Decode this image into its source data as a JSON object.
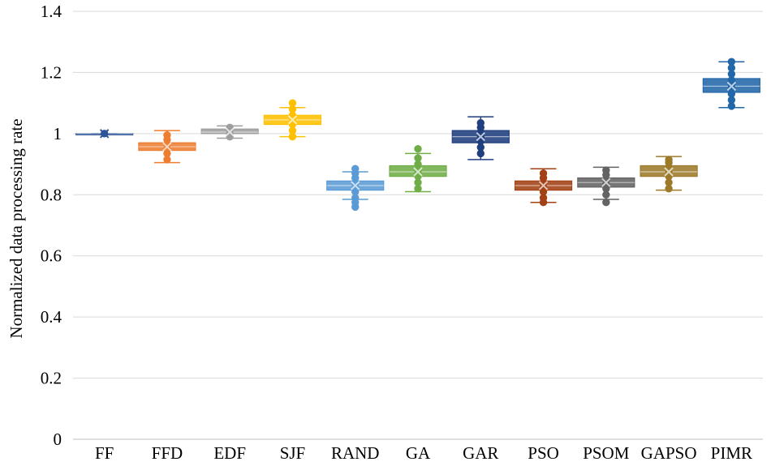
{
  "chart_data": {
    "type": "box",
    "title": "",
    "xlabel": "",
    "ylabel": "Normalized data processing rate",
    "ylim": [
      0,
      1.4
    ],
    "yticks": [
      "0",
      "0.2",
      "0.4",
      "0.6",
      "0.8",
      "1",
      "1.2",
      "1.4"
    ],
    "grid": true,
    "legend": "none",
    "categories": [
      "FF",
      "FFD",
      "EDF",
      "SJF",
      "RAND",
      "GA",
      "GAR",
      "PSO",
      "PSOM",
      "GAPSO",
      "PIMR"
    ],
    "boxes": [
      {
        "category": "FF",
        "color": "#2E5597",
        "min": 1.0,
        "q1": 1.0,
        "median": 1.0,
        "q3": 1.0,
        "max": 1.0,
        "mean": 1.0,
        "points": [
          1.0
        ]
      },
      {
        "category": "FFD",
        "color": "#ED7D31",
        "min": 0.905,
        "q1": 0.945,
        "median": 0.957,
        "q3": 0.97,
        "max": 1.01,
        "mean": 0.957,
        "points": [
          0.915,
          0.935,
          0.95,
          0.965,
          0.98,
          0.995
        ]
      },
      {
        "category": "EDF",
        "color": "#9E9E9E",
        "min": 0.985,
        "q1": 1.0,
        "median": 1.005,
        "q3": 1.015,
        "max": 1.025,
        "mean": 1.005,
        "points": [
          0.99,
          1.0,
          1.01,
          1.02
        ]
      },
      {
        "category": "SJF",
        "color": "#FFC000",
        "min": 0.99,
        "q1": 1.03,
        "median": 1.045,
        "q3": 1.06,
        "max": 1.085,
        "mean": 1.045,
        "points": [
          0.99,
          1.01,
          1.03,
          1.05,
          1.06,
          1.08,
          1.1
        ]
      },
      {
        "category": "RAND",
        "color": "#5B9BD5",
        "min": 0.785,
        "q1": 0.815,
        "median": 0.83,
        "q3": 0.845,
        "max": 0.875,
        "mean": 0.83,
        "points": [
          0.76,
          0.775,
          0.79,
          0.81,
          0.825,
          0.84,
          0.855,
          0.87,
          0.885
        ]
      },
      {
        "category": "GA",
        "color": "#70AD47",
        "min": 0.81,
        "q1": 0.86,
        "median": 0.875,
        "q3": 0.895,
        "max": 0.935,
        "mean": 0.875,
        "points": [
          0.82,
          0.84,
          0.86,
          0.87,
          0.88,
          0.9,
          0.92,
          0.95
        ]
      },
      {
        "category": "GAR",
        "color": "#203F7F",
        "min": 0.915,
        "q1": 0.97,
        "median": 0.99,
        "q3": 1.01,
        "max": 1.055,
        "mean": 0.99,
        "points": [
          0.935,
          0.955,
          0.975,
          0.99,
          1.005,
          1.02,
          1.035
        ]
      },
      {
        "category": "PSO",
        "color": "#A34116",
        "min": 0.775,
        "q1": 0.815,
        "median": 0.83,
        "q3": 0.845,
        "max": 0.885,
        "mean": 0.83,
        "points": [
          0.775,
          0.79,
          0.81,
          0.825,
          0.84,
          0.855,
          0.87
        ]
      },
      {
        "category": "PSOM",
        "color": "#636363",
        "min": 0.785,
        "q1": 0.825,
        "median": 0.84,
        "q3": 0.855,
        "max": 0.89,
        "mean": 0.84,
        "points": [
          0.775,
          0.8,
          0.82,
          0.835,
          0.85,
          0.865,
          0.88
        ]
      },
      {
        "category": "GAPSO",
        "color": "#9C7A2A",
        "min": 0.815,
        "q1": 0.86,
        "median": 0.875,
        "q3": 0.895,
        "max": 0.925,
        "mean": 0.875,
        "points": [
          0.82,
          0.84,
          0.86,
          0.875,
          0.89,
          0.905,
          0.915
        ]
      },
      {
        "category": "PIMR",
        "color": "#2267A8",
        "min": 1.085,
        "q1": 1.135,
        "median": 1.155,
        "q3": 1.18,
        "max": 1.235,
        "mean": 1.155,
        "points": [
          1.09,
          1.11,
          1.13,
          1.15,
          1.16,
          1.175,
          1.195,
          1.215,
          1.235
        ]
      }
    ]
  }
}
